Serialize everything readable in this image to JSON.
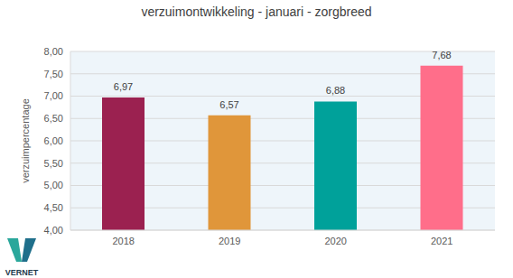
{
  "chart_data": {
    "type": "bar",
    "title": "verzuimontwikkeling  -  januari - zorgbreed",
    "y_label": "verzuimpercentage",
    "categories": [
      "2018",
      "2019",
      "2020",
      "2021"
    ],
    "values": [
      6.97,
      6.57,
      6.88,
      7.68
    ],
    "value_labels": [
      "6,97",
      "6,57",
      "6,88",
      "7,68"
    ],
    "colors": [
      "#9b2150",
      "#e0963a",
      "#00a19a",
      "#ff6e8a"
    ],
    "ylim": [
      4,
      8
    ],
    "yticks": [
      {
        "value": 4,
        "label": "4,00"
      },
      {
        "value": 4.5,
        "label": "4,50"
      },
      {
        "value": 5,
        "label": "5,00"
      },
      {
        "value": 5.5,
        "label": "5,50"
      },
      {
        "value": 6,
        "label": "6,00"
      },
      {
        "value": 6.5,
        "label": "6,50"
      },
      {
        "value": 7,
        "label": "7,00"
      },
      {
        "value": 7.5,
        "label": "7,50"
      },
      {
        "value": 8,
        "label": "8,00"
      }
    ],
    "grid": true,
    "data_labels": true,
    "annotations": [
      "VERNET"
    ]
  }
}
